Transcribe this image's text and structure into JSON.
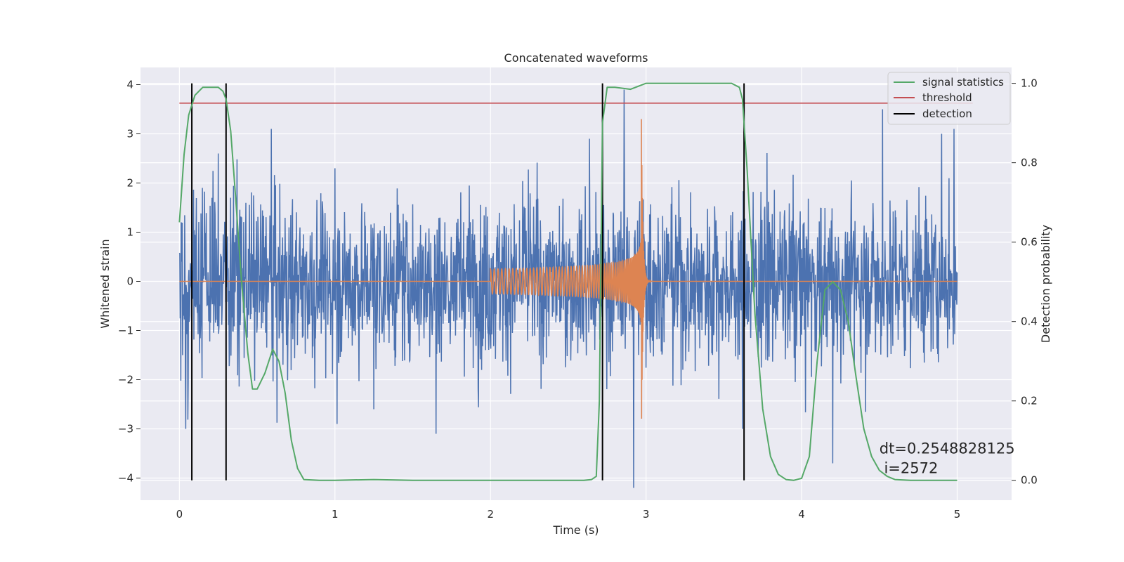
{
  "chart_data": {
    "type": "line",
    "title": "Concatenated waveforms",
    "xlabel": "Time (s)",
    "ylabel": "Whitened strain",
    "y2label": "Detection probability",
    "xlim": [
      -0.25,
      5.35
    ],
    "ylim": [
      -4.45,
      4.35
    ],
    "y2lim": [
      -0.05,
      1.04
    ],
    "xticks": [
      0,
      1,
      2,
      3,
      4,
      5
    ],
    "yticks": [
      -4,
      -3,
      -2,
      -1,
      0,
      1,
      2,
      3,
      4
    ],
    "y2ticks": [
      0.0,
      0.2,
      0.4,
      0.6,
      0.8,
      1.0
    ],
    "grid": true,
    "legend_position": "top-right",
    "colors": {
      "noise": "#4c72b0",
      "signal": "#dd8452",
      "statistics": "#55a868",
      "threshold": "#c44e52",
      "detection": "#000000",
      "background": "#eaeaf2",
      "grid": "#ffffff"
    },
    "series": [
      {
        "name": "",
        "kind": "noise",
        "description_values": "whitened strain samples over 0-5 s",
        "x_range": [
          0,
          5
        ],
        "amplitude_typical": 1.2,
        "peaks": [
          [
            0.04,
            -3.0
          ],
          [
            0.25,
            2.6
          ],
          [
            0.59,
            3.1
          ],
          [
            1.0,
            2.3
          ],
          [
            1.25,
            -2.6
          ],
          [
            1.65,
            -3.1
          ],
          [
            2.86,
            3.9
          ],
          [
            2.92,
            -4.2
          ],
          [
            3.62,
            -3.0
          ],
          [
            4.2,
            -3.7
          ],
          [
            4.52,
            3.5
          ],
          [
            4.9,
            3.0
          ],
          [
            4.98,
            3.1
          ]
        ]
      },
      {
        "name": "",
        "kind": "chirp",
        "x_start": 2.0,
        "x_merger": 2.97,
        "amplitude_start": 0.25,
        "amplitude_peak": 3.3,
        "x_end": 5.0
      },
      {
        "name": "signal statistics",
        "axis": "right",
        "x": [
          0.0,
          0.03,
          0.06,
          0.1,
          0.15,
          0.2,
          0.25,
          0.28,
          0.3,
          0.33,
          0.36,
          0.4,
          0.44,
          0.47,
          0.5,
          0.55,
          0.6,
          0.64,
          0.68,
          0.72,
          0.76,
          0.8,
          0.9,
          1.0,
          1.25,
          1.5,
          2.0,
          2.5,
          2.6,
          2.65,
          2.68,
          2.7,
          2.72,
          2.75,
          2.8,
          2.9,
          3.0,
          3.2,
          3.4,
          3.55,
          3.6,
          3.62,
          3.65,
          3.7,
          3.75,
          3.8,
          3.85,
          3.9,
          3.95,
          4.0,
          4.05,
          4.1,
          4.15,
          4.2,
          4.25,
          4.3,
          4.35,
          4.4,
          4.45,
          4.5,
          4.55,
          4.6,
          4.7,
          4.8,
          5.0
        ],
        "y": [
          0.65,
          0.82,
          0.92,
          0.97,
          0.99,
          0.99,
          0.99,
          0.98,
          0.96,
          0.88,
          0.72,
          0.5,
          0.32,
          0.23,
          0.23,
          0.27,
          0.33,
          0.3,
          0.22,
          0.1,
          0.03,
          0.002,
          0.0,
          0.0,
          0.002,
          0.0,
          0.0,
          0.0,
          0.0,
          0.002,
          0.01,
          0.2,
          0.9,
          0.99,
          0.99,
          0.985,
          1.0,
          1.0,
          1.0,
          1.0,
          0.99,
          0.96,
          0.78,
          0.42,
          0.18,
          0.06,
          0.015,
          0.002,
          0.0,
          0.005,
          0.06,
          0.3,
          0.48,
          0.5,
          0.48,
          0.4,
          0.26,
          0.13,
          0.06,
          0.025,
          0.01,
          0.002,
          0.0,
          0.0,
          0.0
        ]
      },
      {
        "name": "threshold",
        "axis": "right",
        "value": 0.95,
        "x_range": [
          0,
          5.1
        ]
      },
      {
        "name": "detection",
        "axis": "right",
        "x": [
          0.08,
          0.3,
          2.72,
          3.63
        ],
        "y_range": [
          0.0,
          1.0
        ]
      }
    ],
    "annotation": {
      "line1": "dt=0.2548828125",
      "line2": " i=2572",
      "x": 4.5,
      "y": -3.5
    }
  }
}
